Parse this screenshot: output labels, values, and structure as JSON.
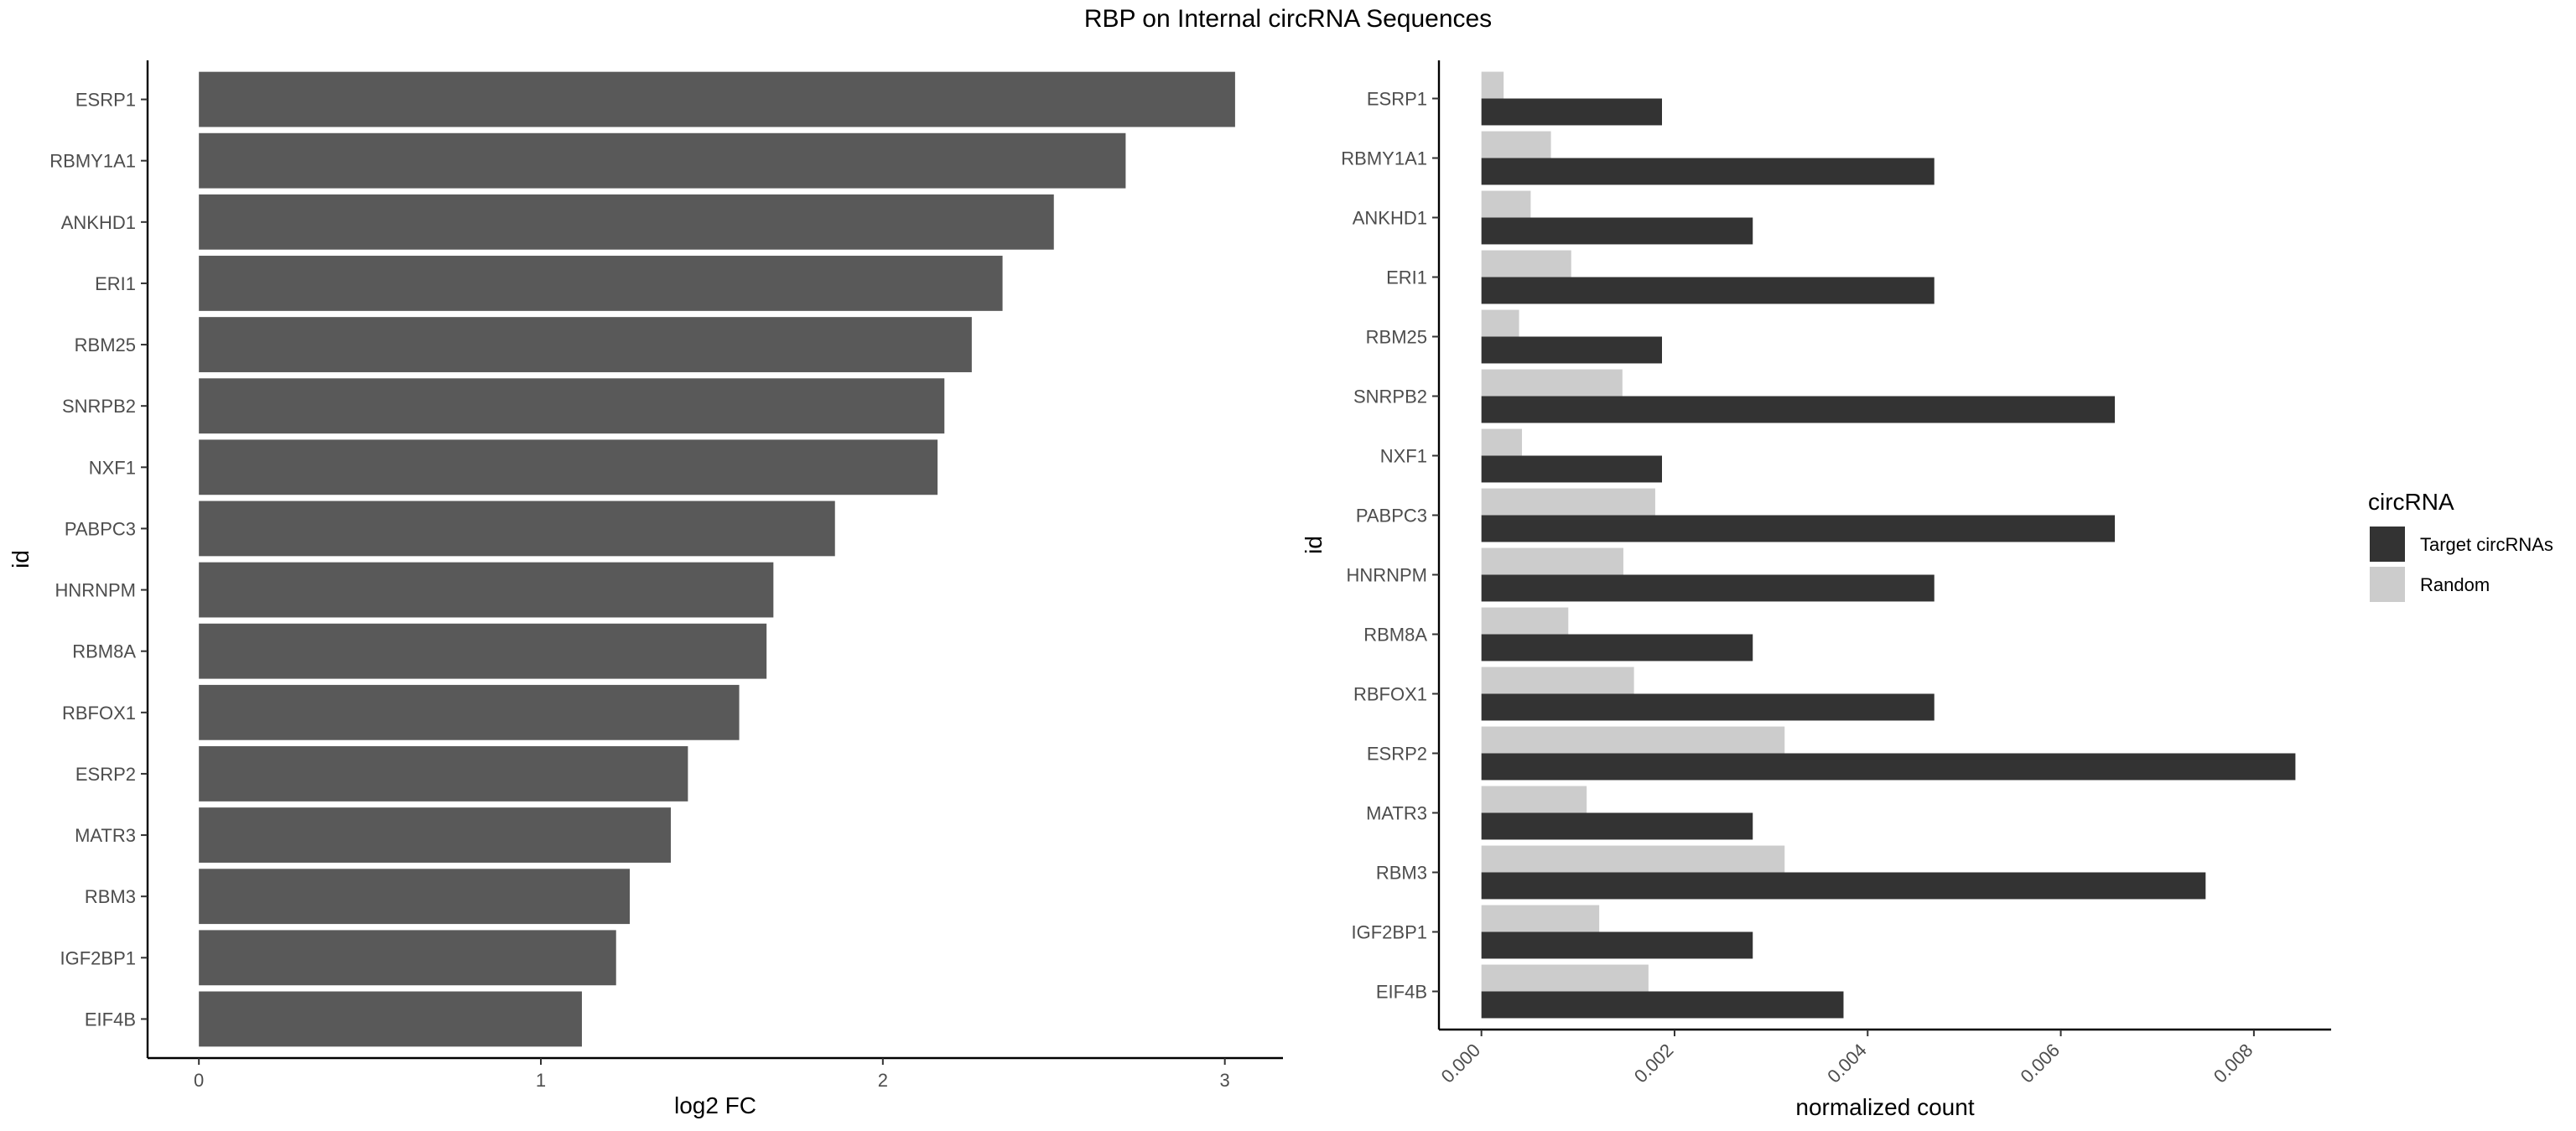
{
  "figure": {
    "title": "RBP on Internal circRNA Sequences"
  },
  "colors": {
    "target": "#333333",
    "random": "#cccccc",
    "bar_left": "#595959"
  },
  "chart_data": [
    {
      "type": "bar",
      "orientation": "horizontal",
      "categories": [
        "ESRP1",
        "RBMY1A1",
        "ANKHD1",
        "ERI1",
        "RBM25",
        "SNRPB2",
        "NXF1",
        "PABPC3",
        "HNRNPM",
        "RBM8A",
        "RBFOX1",
        "ESRP2",
        "MATR3",
        "RBM3",
        "IGF2BP1",
        "EIF4B"
      ],
      "values": [
        3.03,
        2.71,
        2.5,
        2.35,
        2.26,
        2.18,
        2.16,
        1.86,
        1.68,
        1.66,
        1.58,
        1.43,
        1.38,
        1.26,
        1.22,
        1.12
      ],
      "xlabel": "log2 FC",
      "ylabel": "id",
      "xlim": [
        -0.15,
        3.17
      ],
      "xticks": [
        "0",
        "1",
        "2",
        "3"
      ],
      "grid": false
    },
    {
      "type": "bar",
      "orientation": "horizontal",
      "categories": [
        "ESRP1",
        "RBMY1A1",
        "ANKHD1",
        "ERI1",
        "RBM25",
        "SNRPB2",
        "NXF1",
        "PABPC3",
        "HNRNPM",
        "RBM8A",
        "RBFOX1",
        "ESRP2",
        "MATR3",
        "RBM3",
        "IGF2BP1",
        "EIF4B"
      ],
      "series": [
        {
          "name": "Target circRNAs",
          "values": [
            0.00187,
            0.00469,
            0.00281,
            0.00469,
            0.00187,
            0.00656,
            0.00187,
            0.00656,
            0.00469,
            0.00281,
            0.00469,
            0.00843,
            0.00281,
            0.0075,
            0.00281,
            0.00375
          ]
        },
        {
          "name": "Random",
          "values": [
            0.00023,
            0.00072,
            0.00051,
            0.00093,
            0.00039,
            0.00146,
            0.00042,
            0.0018,
            0.00147,
            0.0009,
            0.00158,
            0.00314,
            0.00109,
            0.00314,
            0.00122,
            0.00173
          ]
        }
      ],
      "xlabel": "normalized count",
      "ylabel": "id",
      "xlim": [
        -0.00044,
        0.0088
      ],
      "xticks": [
        "0.000",
        "0.002",
        "0.004",
        "0.006",
        "0.008"
      ],
      "legend": {
        "title": "circRNA",
        "placement": "right"
      },
      "grid": false
    }
  ]
}
